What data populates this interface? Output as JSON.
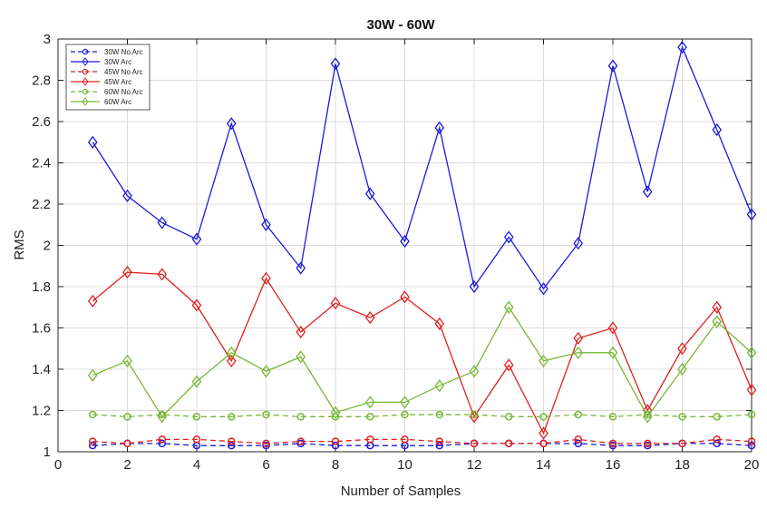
{
  "chart_data": {
    "type": "line",
    "title": "30W - 60W",
    "xlabel": "Number of Samples",
    "ylabel": "RMS",
    "xlim": [
      0,
      20
    ],
    "ylim": [
      1,
      3
    ],
    "xticks": [
      0,
      2,
      4,
      6,
      8,
      10,
      12,
      14,
      16,
      18,
      20
    ],
    "yticks": [
      1,
      1.2,
      1.4,
      1.6,
      1.8,
      2,
      2.2,
      2.4,
      2.6,
      2.8,
      3
    ],
    "grid": true,
    "legend_position": "top-left",
    "x": [
      1,
      2,
      3,
      4,
      5,
      6,
      7,
      8,
      9,
      10,
      11,
      12,
      13,
      14,
      15,
      16,
      17,
      18,
      19,
      20
    ],
    "series": [
      {
        "name": "30W No Arc",
        "color": "#1a1adb",
        "style": "dashed",
        "marker": "circle",
        "values": [
          1.03,
          1.04,
          1.04,
          1.03,
          1.03,
          1.03,
          1.04,
          1.03,
          1.03,
          1.03,
          1.03,
          1.04,
          1.04,
          1.04,
          1.04,
          1.03,
          1.03,
          1.04,
          1.04,
          1.03
        ]
      },
      {
        "name": "30W Arc",
        "color": "#1a1adb",
        "style": "solid",
        "marker": "diamond",
        "values": [
          2.5,
          2.24,
          2.11,
          2.03,
          2.59,
          2.1,
          1.89,
          2.88,
          2.25,
          2.02,
          2.57,
          1.8,
          2.04,
          1.79,
          2.01,
          2.87,
          2.26,
          2.96,
          2.56,
          2.15
        ]
      },
      {
        "name": "45W No Arc",
        "color": "#e02020",
        "style": "dashed",
        "marker": "circle",
        "values": [
          1.05,
          1.04,
          1.06,
          1.06,
          1.05,
          1.04,
          1.05,
          1.05,
          1.06,
          1.06,
          1.05,
          1.04,
          1.04,
          1.04,
          1.06,
          1.04,
          1.04,
          1.04,
          1.06,
          1.05
        ]
      },
      {
        "name": "45W Arc",
        "color": "#e02020",
        "style": "solid",
        "marker": "diamond",
        "values": [
          1.73,
          1.87,
          1.86,
          1.71,
          1.44,
          1.84,
          1.58,
          1.72,
          1.65,
          1.75,
          1.62,
          1.17,
          1.42,
          1.09,
          1.55,
          1.6,
          1.2,
          1.5,
          1.7,
          1.3
        ]
      },
      {
        "name": "60W No Arc",
        "color": "#77b835",
        "style": "dashed",
        "marker": "circle",
        "values": [
          1.18,
          1.17,
          1.18,
          1.17,
          1.17,
          1.18,
          1.17,
          1.17,
          1.17,
          1.18,
          1.18,
          1.18,
          1.17,
          1.17,
          1.18,
          1.17,
          1.18,
          1.17,
          1.17,
          1.18
        ]
      },
      {
        "name": "60W Arc",
        "color": "#77b835",
        "style": "solid",
        "marker": "diamond",
        "values": [
          1.37,
          1.44,
          1.17,
          1.34,
          1.48,
          1.39,
          1.46,
          1.19,
          1.24,
          1.24,
          1.32,
          1.39,
          1.7,
          1.44,
          1.48,
          1.48,
          1.17,
          1.4,
          1.63,
          1.48
        ]
      }
    ]
  }
}
